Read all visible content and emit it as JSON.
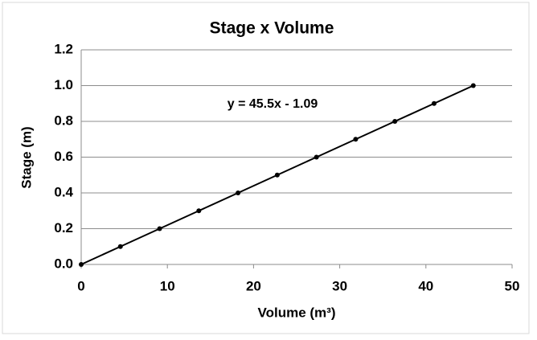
{
  "chart_data": {
    "type": "line",
    "title": "Stage x Volume",
    "x_label": "Volume (m³)",
    "y_label": "Stage  (m)",
    "annotation": "y = 45.5x - 1.09",
    "x": [
      0,
      4.55,
      9.1,
      13.65,
      18.2,
      22.75,
      27.3,
      31.85,
      36.4,
      40.95,
      45.5
    ],
    "series": [
      {
        "name": "Stage",
        "color": "#000000",
        "values": [
          0,
          0.1,
          0.2,
          0.3,
          0.4,
          0.5,
          0.6,
          0.7,
          0.8,
          0.9,
          1.0
        ]
      }
    ],
    "xlim": [
      0,
      50
    ],
    "xticks": [
      0,
      10,
      20,
      30,
      40,
      50
    ],
    "ylim": [
      0,
      1.2
    ],
    "yticks": [
      {
        "value": 0,
        "label": "0.0"
      },
      {
        "value": 0.2,
        "label": "0.2"
      },
      {
        "value": 0.4,
        "label": "0.4"
      },
      {
        "value": 0.6,
        "label": "0.6"
      },
      {
        "value": 0.8,
        "label": "0.8"
      },
      {
        "value": 1.0,
        "label": "1.0"
      },
      {
        "value": 1.2,
        "label": "1.2"
      }
    ],
    "grid": true
  }
}
